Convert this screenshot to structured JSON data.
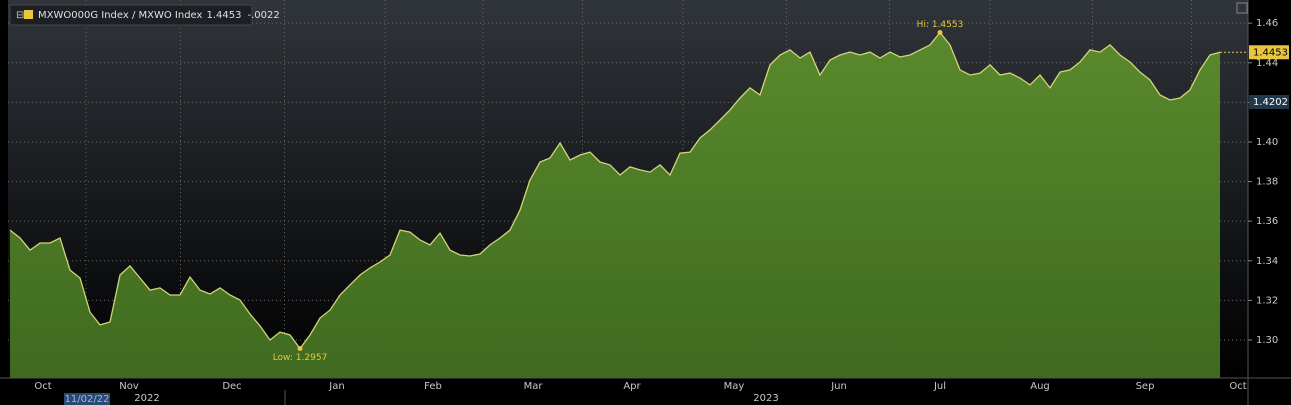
{
  "chart_data": {
    "type": "area",
    "series": [
      {
        "name": "MXWO000G Index / MXWO Index",
        "color": "#d2d47a",
        "fill": "#4d7a26",
        "values": [
          1.3555,
          1.3515,
          1.3454,
          1.349,
          1.349,
          1.3515,
          1.3353,
          1.3313,
          1.3141,
          1.3076,
          1.3091,
          1.3328,
          1.3374,
          1.3313,
          1.3252,
          1.3263,
          1.3227,
          1.3227,
          1.3318,
          1.3252,
          1.3232,
          1.3263,
          1.3227,
          1.3202,
          1.3131,
          1.3071,
          1.3,
          1.304,
          1.3025,
          1.2957,
          1.3025,
          1.3111,
          1.3151,
          1.3227,
          1.3278,
          1.3328,
          1.3364,
          1.3394,
          1.3429,
          1.3555,
          1.3545,
          1.3505,
          1.348,
          1.354,
          1.3454,
          1.3429,
          1.3424,
          1.3434,
          1.348,
          1.3515,
          1.3555,
          1.3656,
          1.3808,
          1.3899,
          1.3919,
          1.3995,
          1.3909,
          1.3934,
          1.3949,
          1.3899,
          1.3884,
          1.3833,
          1.3874,
          1.3859,
          1.3848,
          1.3884,
          1.3833,
          1.3944,
          1.3949,
          1.402,
          1.4061,
          1.4111,
          1.4162,
          1.4222,
          1.4273,
          1.4237,
          1.4389,
          1.4439,
          1.4465,
          1.4424,
          1.4454,
          1.4338,
          1.4414,
          1.4439,
          1.4454,
          1.4439,
          1.4454,
          1.4424,
          1.4454,
          1.4429,
          1.4439,
          1.4465,
          1.449,
          1.4553,
          1.449,
          1.4364,
          1.4338,
          1.4348,
          1.4389,
          1.4338,
          1.4348,
          1.4323,
          1.4288,
          1.4338,
          1.4273,
          1.4353,
          1.4364,
          1.4404,
          1.4465,
          1.4454,
          1.449,
          1.4439,
          1.4404,
          1.4353,
          1.4313,
          1.4237,
          1.4212,
          1.4222,
          1.4263,
          1.4364,
          1.4439,
          1.4453
        ]
      }
    ],
    "change": {
      "value": -0.0022,
      "label": "-.0022"
    },
    "hi_label": "Hi: 1.4553",
    "low_label": "Low: 1.2957",
    "reference_value": 1.4202,
    "xlim": [
      -0.2,
      123.8
    ],
    "xticks": [
      {
        "value": 3.3,
        "label": "Oct"
      },
      {
        "value": 11.9,
        "label": "Nov"
      },
      {
        "value": 22.2,
        "label": "Dec"
      },
      {
        "value": 32.7,
        "label": "Jan"
      },
      {
        "value": 42.3,
        "label": "Feb"
      },
      {
        "value": 52.3,
        "label": "Mar"
      },
      {
        "value": 62.2,
        "label": "Apr"
      },
      {
        "value": 72.4,
        "label": "May"
      },
      {
        "value": 82.9,
        "label": "Jun"
      },
      {
        "value": 93,
        "label": "Jul"
      },
      {
        "value": 103,
        "label": "Aug"
      },
      {
        "value": 113.5,
        "label": "Sep"
      },
      {
        "value": 122.8,
        "label": "Oct"
      }
    ],
    "year_ticks": [
      {
        "value": 13.7,
        "label": "2022"
      },
      {
        "value": 75.6,
        "label": "2023"
      }
    ],
    "start_date": "11/02/22",
    "ylim": [
      1.2808,
      1.4717
    ],
    "yticks": [
      {
        "value": 1.3,
        "label": "1.30"
      },
      1.32,
      1.34,
      1.36,
      1.38,
      {
        "value": 1.4,
        "label": "1.40"
      },
      1.42,
      1.44,
      1.46
    ],
    "grid": true
  }
}
